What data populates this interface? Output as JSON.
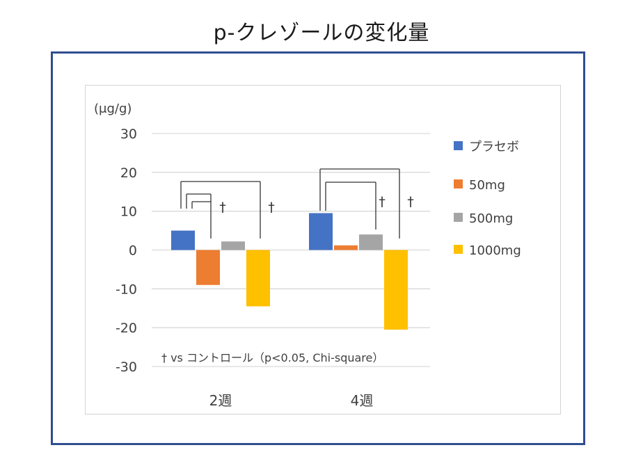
{
  "title": "p-クレゾールの変化量",
  "colors": {
    "frame": "#2f4e8f",
    "placebo": "#4472c4",
    "dose50": "#ed7d31",
    "dose500": "#a5a5a5",
    "dose1000": "#ffc000",
    "bracket": "#333333",
    "grid": "#d9d9d9"
  },
  "chart_data": {
    "type": "bar",
    "title": "p-クレゾールの変化量",
    "ylabel": "(μg/g)",
    "xlabel": "",
    "categories": [
      "2週",
      "4週"
    ],
    "ylim": [
      -30,
      30
    ],
    "yticks": [
      30,
      20,
      10,
      0,
      -10,
      -20,
      -30
    ],
    "grid": true,
    "legend_position": "right",
    "series": [
      {
        "name": "プラセボ",
        "color": "#4472c4",
        "values": [
          5,
          9.5
        ]
      },
      {
        "name": "50mg",
        "color": "#ed7d31",
        "values": [
          -9,
          1.2
        ]
      },
      {
        "name": "500mg",
        "color": "#a5a5a5",
        "values": [
          2.2,
          4
        ]
      },
      {
        "name": "1000mg",
        "color": "#ffc000",
        "values": [
          -14.5,
          -20.5
        ]
      }
    ],
    "significance": [
      {
        "category": "2週",
        "comparisons": [
          "50mg",
          "500mg",
          "1000mg"
        ],
        "marked": [
          "500mg",
          "1000mg"
        ],
        "symbol": "†"
      },
      {
        "category": "4週",
        "comparisons": [
          "500mg",
          "1000mg"
        ],
        "marked": [
          "500mg",
          "1000mg"
        ],
        "symbol": "†"
      }
    ],
    "annotation": "† vs コントロール（p<0.05, Chi-square）"
  }
}
